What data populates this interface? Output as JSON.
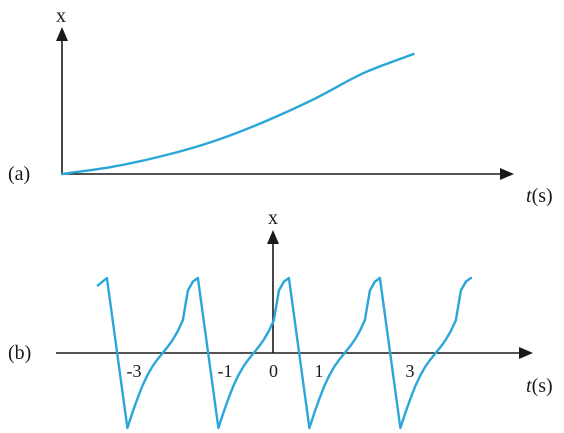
{
  "colors": {
    "curve": "#2aa6d8",
    "axis": "#1a1a1a"
  },
  "chart_data": [
    {
      "panel_label": "(a)",
      "type": "line",
      "xlabel_italic": "t",
      "xlabel_unit": "(s)",
      "ylabel": "x",
      "grid": false,
      "legend": "none",
      "x": [
        0,
        1,
        2,
        3,
        4,
        5,
        6,
        7
      ],
      "y": [
        0,
        0.06,
        0.15,
        0.27,
        0.43,
        0.62,
        0.84,
        1.0
      ],
      "xlim": [
        0,
        9
      ],
      "ylim": [
        0,
        1.25
      ],
      "description_shape": "monotonically increasing, convex (accelerating) curve starting at origin"
    },
    {
      "panel_label": "(b)",
      "type": "line",
      "xlabel_italic": "t",
      "xlabel_unit": "(s)",
      "ylabel": "x",
      "grid": false,
      "legend": "none",
      "ticks": [
        {
          "value": -3,
          "label": "-3"
        },
        {
          "value": -1,
          "label": "-1"
        },
        {
          "value": 0,
          "label": "0"
        },
        {
          "value": 1,
          "label": "1"
        },
        {
          "value": 3,
          "label": "3"
        }
      ],
      "period": 2,
      "xlim": [
        -5.0,
        5.0
      ],
      "ylim": [
        -1.2,
        1.2
      ],
      "series": [
        {
          "x": [
            -3.85,
            -3.8,
            -3.3,
            -3.0,
            -2.8,
            -2.6,
            -2.4,
            -2.2,
            -1.8,
            -1.3,
            -1.0,
            -0.8,
            -0.6,
            -0.4,
            -0.2,
            0.2,
            0.7,
            1.0,
            1.2,
            1.4,
            1.6,
            1.8,
            2.2,
            2.7,
            3.0,
            3.2,
            3.4,
            3.9
          ],
          "y": [
            0.95,
            1.0,
            -1.0,
            -0.8,
            -0.2,
            0.2,
            0.75,
            1.0,
            -1.0,
            -0.8,
            -0.2,
            0.2,
            0.75,
            1.0,
            -1.0,
            -0.8,
            -0.2,
            0.2,
            0.75,
            1.0,
            -1.0,
            -0.8,
            -0.2,
            0.2,
            0.75,
            1.0,
            -1.0,
            0.95
          ]
        }
      ],
      "description_shape": "periodic sawtooth-like wave: rising S-shaped segments followed by sharp drops"
    }
  ],
  "labels": {
    "panel_a": "(a)",
    "panel_b": "(b)",
    "axis_x_a": "x",
    "axis_x_b": "x",
    "time_italic_a": "t",
    "time_unit_a": "(s)",
    "time_italic_b": "t",
    "time_unit_b": "(s)"
  }
}
